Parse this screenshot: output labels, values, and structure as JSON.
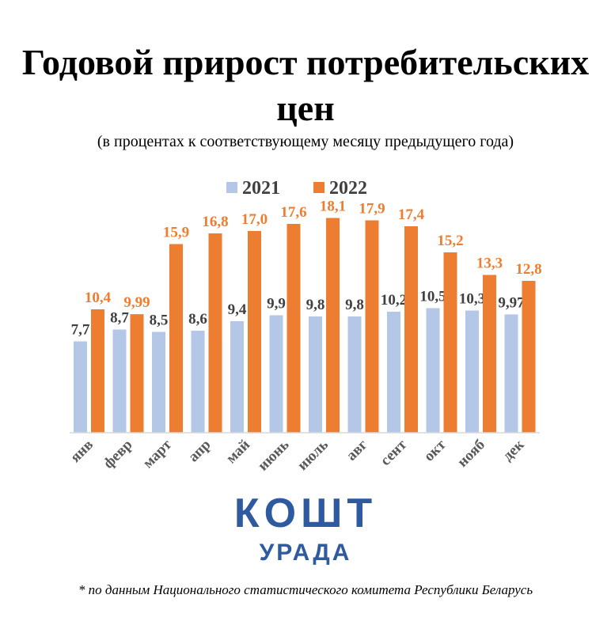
{
  "title": "Годовой прирост потребительских цен",
  "subtitle": "(в процентах к соответствующему месяцу предыдущего года)",
  "logo": {
    "main": "КОШТ",
    "sub": "УРАДА"
  },
  "footnote": "* по данным Национального статистического комитета Республики Беларусь",
  "colors": {
    "series_2021": "#b4c7e7",
    "series_2022": "#ed7d31",
    "label_2021": "#404040",
    "label_2022": "#ed7d31",
    "logo": "#2f5aa0"
  },
  "chart_data": {
    "type": "bar",
    "categories": [
      "янв",
      "февр",
      "март",
      "апр",
      "май",
      "июнь",
      "июль",
      "авг",
      "сент",
      "окт",
      "нояб",
      "дек"
    ],
    "series": [
      {
        "name": "2021",
        "values": [
          7.7,
          8.7,
          8.5,
          8.6,
          9.4,
          9.9,
          9.8,
          9.8,
          10.2,
          10.5,
          10.3,
          9.97
        ],
        "labels": [
          "7,7",
          "8,7",
          "8,5",
          "8,6",
          "9,4",
          "9,9",
          "9,8",
          "9,8",
          "10,2",
          "10,5",
          "10,3",
          "9,97"
        ]
      },
      {
        "name": "2022",
        "values": [
          10.4,
          9.99,
          15.9,
          16.8,
          17.0,
          17.6,
          18.1,
          17.9,
          17.4,
          15.2,
          13.3,
          12.8
        ],
        "labels": [
          "10,4",
          "9,99",
          "15,9",
          "16,8",
          "17,0",
          "17,6",
          "18,1",
          "17,9",
          "17,4",
          "15,2",
          "13,3",
          "12,8"
        ]
      }
    ],
    "ylim": [
      0,
      20
    ],
    "legend_position": "top-center",
    "grid": false
  }
}
